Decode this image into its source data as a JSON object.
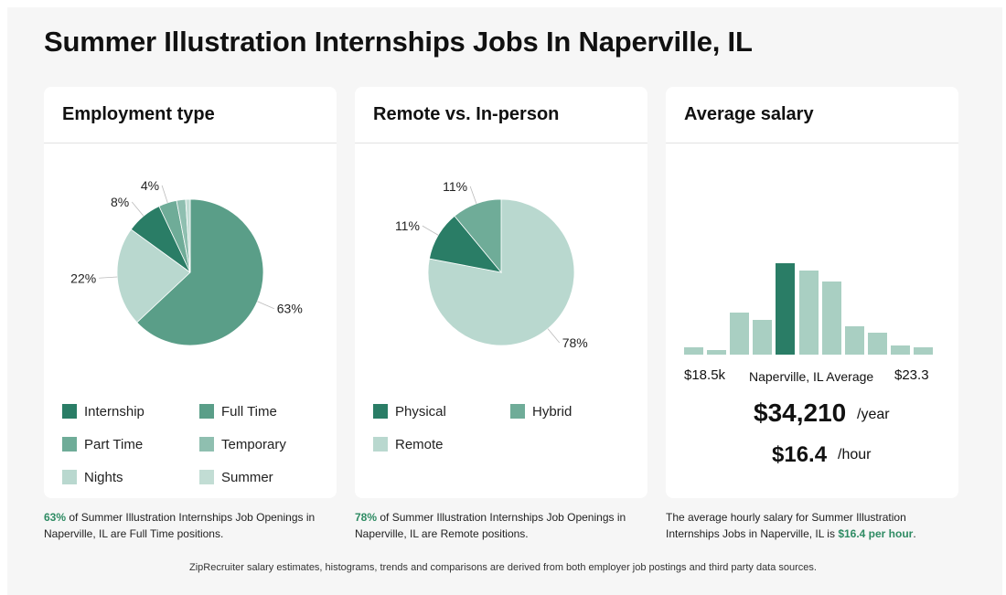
{
  "page": {
    "title": "Summer Illustration Internships Jobs In Naperville, IL"
  },
  "cards": {
    "employment": {
      "title": "Employment type"
    },
    "remote": {
      "title": "Remote vs. In-person"
    },
    "salary": {
      "title": "Average salary"
    }
  },
  "chart_data": [
    {
      "type": "pie",
      "title": "Employment type",
      "slices": [
        {
          "name": "Full Time",
          "value": 63,
          "label": "63%",
          "color": "#5a9e88"
        },
        {
          "name": "Part Time",
          "value": 22,
          "label": "22%",
          "color": "#b9d8cf"
        },
        {
          "name": "Internship",
          "value": 8,
          "label": "8%",
          "color": "#2a7d66"
        },
        {
          "name": "Temporary",
          "value": 4,
          "label": "4%",
          "color": "#6fac98"
        },
        {
          "name": "Nights",
          "value": 2,
          "label": "",
          "color": "#8fbfb0"
        },
        {
          "name": "Summer",
          "value": 1,
          "label": "",
          "color": "#c2ddd4"
        }
      ],
      "legend": [
        {
          "name": "Internship",
          "color": "#2a7d66"
        },
        {
          "name": "Full Time",
          "color": "#5a9e88"
        },
        {
          "name": "Part Time",
          "color": "#6fac98"
        },
        {
          "name": "Temporary",
          "color": "#8fbfb0"
        },
        {
          "name": "Nights",
          "color": "#b9d8cf"
        },
        {
          "name": "Summer",
          "color": "#c2ddd4"
        }
      ]
    },
    {
      "type": "pie",
      "title": "Remote vs. In-person",
      "slices": [
        {
          "name": "Remote",
          "value": 78,
          "label": "78%",
          "color": "#b9d8cf"
        },
        {
          "name": "Physical",
          "value": 11,
          "label": "11%",
          "color": "#2a7d66"
        },
        {
          "name": "Hybrid",
          "value": 11,
          "label": "11%",
          "color": "#6fac98"
        }
      ],
      "legend": [
        {
          "name": "Physical",
          "color": "#2a7d66"
        },
        {
          "name": "Hybrid",
          "color": "#6fac98"
        },
        {
          "name": "Remote",
          "color": "#b9d8cf"
        }
      ]
    },
    {
      "type": "bar",
      "title": "Average salary",
      "values": [
        2,
        1.3,
        11.5,
        9.5,
        25,
        23,
        20,
        7.8,
        6,
        2.5,
        2
      ],
      "highlight_index": 4,
      "ylim": [
        0,
        25
      ],
      "range_min": "$18.5k",
      "range_max": "$23.3",
      "center_label": "Naperville, IL Average",
      "colors": {
        "bar": "#a9cfc2",
        "highlight": "#2a7d66"
      }
    }
  ],
  "salary": {
    "yearly": "$34,210",
    "yearly_unit": "/year",
    "hourly": "$16.4",
    "hourly_unit": "/hour"
  },
  "captions": {
    "employment": {
      "highlight": "63%",
      "text": " of Summer Illustration Internships Job Openings in Naperville, IL are Full Time positions."
    },
    "remote": {
      "highlight": "78%",
      "text": " of Summer Illustration Internships Job Openings in Naperville, IL are Remote positions."
    },
    "salary": {
      "text": "The average hourly salary for Summer Illustration Internships Jobs in Naperville, IL is ",
      "highlight": "$16.4 per hour",
      "end": "."
    }
  },
  "footnote": "ZipRecruiter salary estimates, histograms, trends and comparisons are derived from both employer job postings and third party data sources.",
  "colors": {
    "accent": "#2e8b63",
    "background": "#f6f6f6",
    "card": "#ffffff"
  }
}
